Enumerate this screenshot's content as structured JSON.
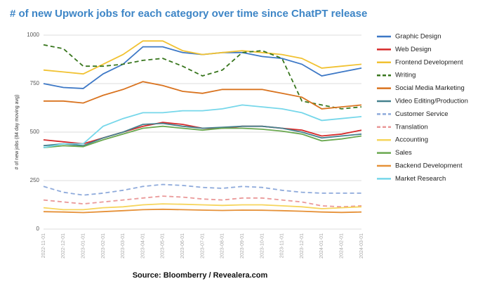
{
  "chart_data": {
    "type": "line",
    "title": "# of new Upwork jobs for each category over time since ChatPT release",
    "y_label": "# of new jobs (84 day moving avg)",
    "source": "Source: Bloomberry / Revealera.com",
    "categories": [
      "2022-11-01",
      "2022-12-01",
      "2023-01-01",
      "2023-02-01",
      "2023-03-01",
      "2023-04-01",
      "2023-05-01",
      "2023-06-01",
      "2023-07-01",
      "2023-08-01",
      "2023-09-01",
      "2023-10-01",
      "2023-11-01",
      "2023-12-01",
      "2024-01-01",
      "2024-02-01",
      "2024-03-01"
    ],
    "ylim": [
      0,
      1000
    ],
    "yticks": [
      0,
      250,
      500,
      750,
      1000
    ],
    "grid": true,
    "series": [
      {
        "name": "Graphic Design",
        "color": "#3d78c6",
        "dash": false,
        "values": [
          750,
          730,
          725,
          800,
          850,
          940,
          940,
          910,
          900,
          910,
          910,
          890,
          880,
          850,
          790,
          810,
          830
        ]
      },
      {
        "name": "Web Design",
        "color": "#d62a2a",
        "dash": false,
        "values": [
          460,
          450,
          440,
          470,
          500,
          530,
          550,
          540,
          520,
          520,
          530,
          530,
          520,
          510,
          480,
          490,
          510
        ]
      },
      {
        "name": "Frontend Development",
        "color": "#f1c232",
        "dash": false,
        "values": [
          820,
          810,
          800,
          850,
          900,
          970,
          970,
          920,
          900,
          910,
          920,
          910,
          900,
          880,
          830,
          840,
          850
        ]
      },
      {
        "name": "Writing",
        "color": "#38761d",
        "dash": true,
        "values": [
          950,
          930,
          840,
          840,
          850,
          870,
          880,
          840,
          790,
          820,
          910,
          920,
          880,
          660,
          640,
          620,
          630
        ]
      },
      {
        "name": "Social Media Marketing",
        "color": "#d9731f",
        "dash": false,
        "values": [
          660,
          660,
          650,
          690,
          720,
          760,
          740,
          710,
          700,
          720,
          720,
          720,
          700,
          680,
          620,
          630,
          640
        ]
      },
      {
        "name": "Video Editing/Production",
        "color": "#45818e",
        "dash": false,
        "values": [
          430,
          440,
          430,
          470,
          500,
          540,
          545,
          530,
          520,
          525,
          530,
          530,
          520,
          500,
          470,
          480,
          490
        ]
      },
      {
        "name": "Customer Service",
        "color": "#8eaadb",
        "dash": true,
        "values": [
          220,
          190,
          175,
          185,
          200,
          220,
          230,
          225,
          215,
          210,
          220,
          215,
          200,
          190,
          185,
          185,
          185
        ]
      },
      {
        "name": "Translation",
        "color": "#ea9999",
        "dash": true,
        "values": [
          150,
          140,
          130,
          140,
          150,
          160,
          170,
          165,
          155,
          150,
          160,
          160,
          150,
          140,
          120,
          115,
          120
        ]
      },
      {
        "name": "Accounting",
        "color": "#f6d55c",
        "dash": false,
        "values": [
          110,
          100,
          100,
          110,
          115,
          125,
          130,
          128,
          125,
          122,
          125,
          125,
          120,
          115,
          105,
          110,
          115
        ]
      },
      {
        "name": "Sales",
        "color": "#6aa84f",
        "dash": false,
        "values": [
          420,
          430,
          425,
          460,
          490,
          520,
          530,
          520,
          510,
          520,
          520,
          515,
          505,
          490,
          455,
          465,
          480
        ]
      },
      {
        "name": "Backend Development",
        "color": "#e69138",
        "dash": false,
        "values": [
          90,
          88,
          85,
          90,
          95,
          100,
          102,
          100,
          98,
          96,
          98,
          97,
          95,
          92,
          88,
          86,
          88
        ]
      },
      {
        "name": "Market Research",
        "color": "#76d7ea",
        "dash": false,
        "values": [
          420,
          440,
          440,
          530,
          570,
          600,
          600,
          610,
          610,
          620,
          640,
          630,
          620,
          600,
          560,
          570,
          580
        ]
      }
    ]
  }
}
